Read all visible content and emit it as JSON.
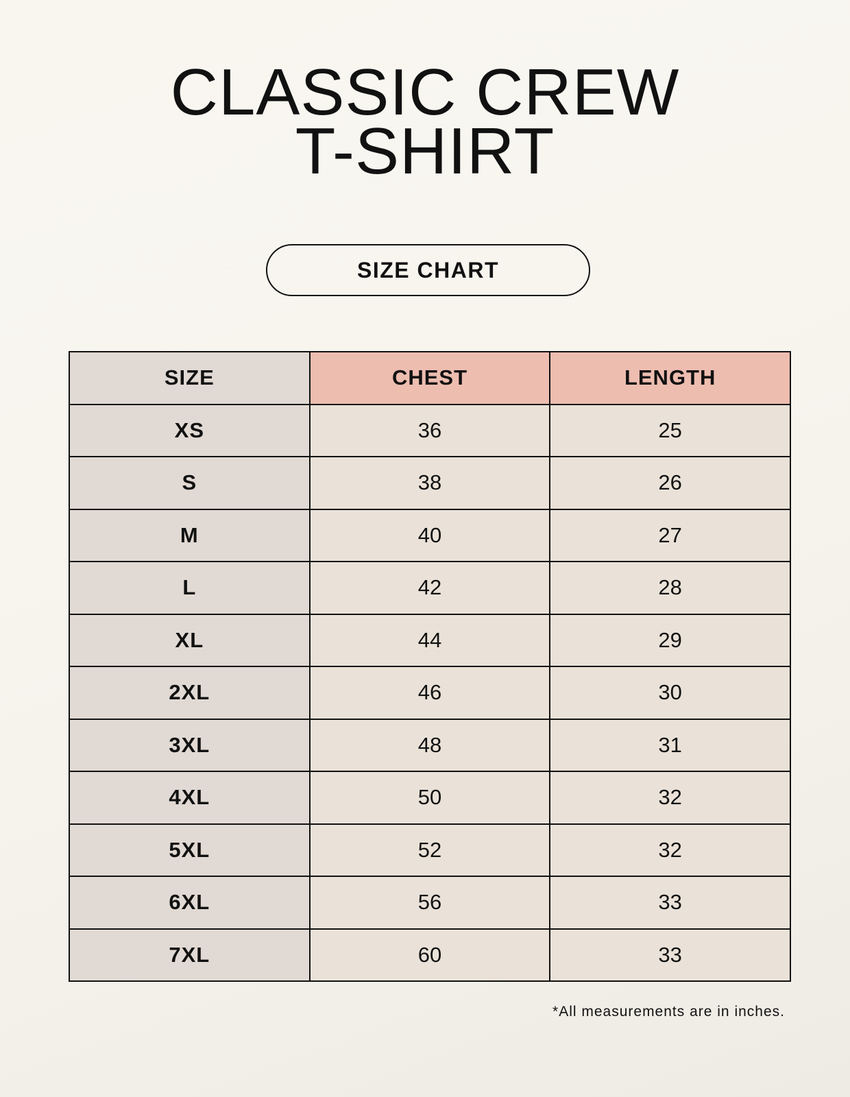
{
  "title": [
    "CLASSIC CREW",
    "T-SHIRT"
  ],
  "badge": "SIZE CHART",
  "table": {
    "headers": [
      "SIZE",
      "CHEST",
      "LENGTH"
    ],
    "rows": [
      [
        "XS",
        "36",
        "25"
      ],
      [
        "S",
        "38",
        "26"
      ],
      [
        "M",
        "40",
        "27"
      ],
      [
        "L",
        "42",
        "28"
      ],
      [
        "XL",
        "44",
        "29"
      ],
      [
        "2XL",
        "46",
        "30"
      ],
      [
        "3XL",
        "48",
        "31"
      ],
      [
        "4XL",
        "50",
        "32"
      ],
      [
        "5XL",
        "52",
        "32"
      ],
      [
        "6XL",
        "56",
        "33"
      ],
      [
        "7XL",
        "60",
        "33"
      ]
    ]
  },
  "footnote": "*All measurements are in inches.",
  "colors": {
    "size_column": "#e1d9d3",
    "measure_header": "#edbdb0",
    "measure_cells": "#eae2d8"
  }
}
